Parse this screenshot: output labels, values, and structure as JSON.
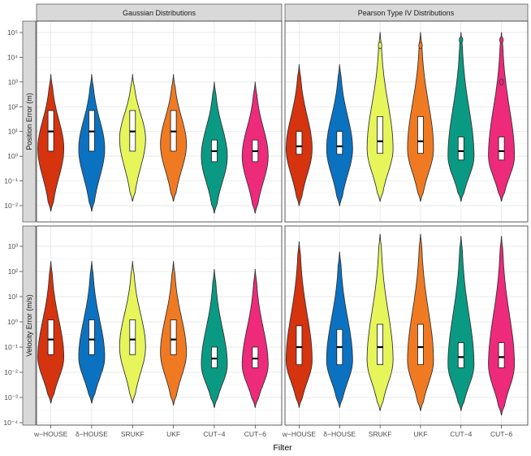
{
  "chart_data": {
    "type": "violin",
    "xlabel": "Filter",
    "categories": [
      "w−HOUSE",
      "δ−HOUSE",
      "SRUKF",
      "UKF",
      "CUT−4",
      "CUT−6"
    ],
    "colors": [
      "#d6330f",
      "#0b72c2",
      "#e6f55a",
      "#f07a22",
      "#0a9a83",
      "#ee2a7b"
    ],
    "columns": [
      "Gaussian Distributions",
      "Pearson Type IV Distributions"
    ],
    "rows": [
      {
        "ylabel": "Position Error (m)",
        "y_scale": "log10",
        "ylim": [
          0.0001,
          100000
        ],
        "y_ticks": [
          "10⁻²",
          "10⁻¹",
          "10⁰",
          "10¹",
          "10²",
          "10³",
          "10⁴",
          "10⁵"
        ],
        "y_tick_exp": [
          -2,
          -1,
          0,
          1,
          2,
          3,
          4,
          5
        ]
      },
      {
        "ylabel": "Velocity Error (m/s)",
        "y_scale": "log10",
        "ylim": [
          0.0001,
          3000
        ],
        "y_ticks": [
          "10⁻⁴",
          "10⁻³",
          "10⁻²",
          "10⁻¹",
          "10⁰",
          "10¹",
          "10²",
          "10³"
        ],
        "y_tick_exp": [
          -4,
          -3,
          -2,
          -1,
          0,
          1,
          2,
          3
        ]
      }
    ],
    "panels": [
      {
        "column": "Gaussian Distributions",
        "row": "Position Error (m)",
        "violins": [
          {
            "min": 0.006,
            "q1": 1.6,
            "median": 10,
            "q3": 70,
            "max": 2000,
            "mode": 2.0
          },
          {
            "min": 0.006,
            "q1": 1.6,
            "median": 10,
            "q3": 70,
            "max": 2000,
            "mode": 2.0
          },
          {
            "min": 0.015,
            "q1": 1.6,
            "median": 10,
            "q3": 70,
            "max": 2000,
            "mode": 5.0
          },
          {
            "min": 0.015,
            "q1": 1.6,
            "median": 10,
            "q3": 70,
            "max": 2000,
            "mode": 3.0
          },
          {
            "min": 0.005,
            "q1": 0.6,
            "median": 1.6,
            "q3": 4.5,
            "max": 1000,
            "mode": 1.0
          },
          {
            "min": 0.005,
            "q1": 0.6,
            "median": 1.6,
            "q3": 4.5,
            "max": 1000,
            "mode": 1.0
          }
        ]
      },
      {
        "column": "Pearson Type IV Distributions",
        "row": "Position Error (m)",
        "violins": [
          {
            "min": 0.01,
            "q1": 1.2,
            "median": 2.5,
            "q3": 10,
            "max": 5000,
            "mode": 2.0
          },
          {
            "min": 0.01,
            "q1": 1.2,
            "median": 2.5,
            "q3": 10,
            "max": 5000,
            "mode": 2.0
          },
          {
            "min": 0.015,
            "q1": 1.3,
            "median": 4,
            "q3": 40,
            "max": 100000,
            "mode": 2.0,
            "outliers": [
              30000
            ]
          },
          {
            "min": 0.015,
            "q1": 1.3,
            "median": 4,
            "q3": 40,
            "max": 100000,
            "mode": 2.0,
            "outliers": [
              30000
            ]
          },
          {
            "min": 0.015,
            "q1": 0.7,
            "median": 1.6,
            "q3": 6,
            "max": 100000,
            "mode": 1.0,
            "outliers": [
              50000
            ]
          },
          {
            "min": 0.015,
            "q1": 0.7,
            "median": 1.6,
            "q3": 6,
            "max": 100000,
            "mode": 1.0,
            "outliers": [
              50000,
              1000
            ]
          }
        ]
      },
      {
        "column": "Gaussian Distributions",
        "row": "Velocity Error (m/s)",
        "violins": [
          {
            "min": 0.0006,
            "q1": 0.05,
            "median": 0.2,
            "q3": 1.2,
            "max": 250,
            "mode": 0.04
          },
          {
            "min": 0.0006,
            "q1": 0.05,
            "median": 0.2,
            "q3": 1.2,
            "max": 250,
            "mode": 0.04
          },
          {
            "min": 0.0006,
            "q1": 0.05,
            "median": 0.2,
            "q3": 1.2,
            "max": 250,
            "mode": 0.1
          },
          {
            "min": 0.0005,
            "q1": 0.05,
            "median": 0.2,
            "q3": 1.2,
            "max": 250,
            "mode": 0.06
          },
          {
            "min": 0.0004,
            "q1": 0.015,
            "median": 0.035,
            "q3": 0.1,
            "max": 120,
            "mode": 0.02
          },
          {
            "min": 0.0004,
            "q1": 0.015,
            "median": 0.035,
            "q3": 0.1,
            "max": 120,
            "mode": 0.02
          }
        ]
      },
      {
        "column": "Pearson Type IV Distributions",
        "row": "Velocity Error (m/s)",
        "violins": [
          {
            "min": 0.0004,
            "q1": 0.02,
            "median": 0.1,
            "q3": 0.7,
            "max": 1500,
            "mode": 0.03
          },
          {
            "min": 0.0004,
            "q1": 0.02,
            "median": 0.1,
            "q3": 0.5,
            "max": 600,
            "mode": 0.03
          },
          {
            "min": 0.0003,
            "q1": 0.02,
            "median": 0.1,
            "q3": 0.8,
            "max": 3000,
            "mode": 0.03
          },
          {
            "min": 0.0003,
            "q1": 0.02,
            "median": 0.1,
            "q3": 0.8,
            "max": 3000,
            "mode": 0.03
          },
          {
            "min": 0.0003,
            "q1": 0.015,
            "median": 0.04,
            "q3": 0.15,
            "max": 2500,
            "mode": 0.02
          },
          {
            "min": 0.0002,
            "q1": 0.015,
            "median": 0.04,
            "q3": 0.15,
            "max": 2500,
            "mode": 0.02
          }
        ]
      }
    ]
  }
}
